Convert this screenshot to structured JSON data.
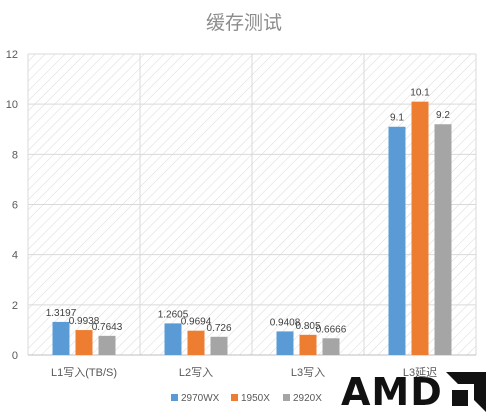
{
  "chart_data": {
    "type": "bar",
    "title": "缓存测试",
    "categories": [
      "L1写入(TB/S)",
      "L2写入",
      "L3写入",
      "L3延迟"
    ],
    "series": [
      {
        "name": "2970WX",
        "color": "#5b9bd5",
        "values": [
          1.3197,
          1.2605,
          0.9408,
          9.1
        ],
        "labels": [
          "1.3197",
          "1.2605",
          "0.9408",
          "9.1"
        ]
      },
      {
        "name": "1950X",
        "color": "#ed7d31",
        "values": [
          0.9938,
          0.9694,
          0.805,
          10.1
        ],
        "labels": [
          "0.9938",
          "0.9694",
          "0.805",
          "10.1"
        ]
      },
      {
        "name": "2920X",
        "color": "#a5a5a5",
        "values": [
          0.7643,
          0.726,
          0.6666,
          9.2
        ],
        "labels": [
          "0.7643",
          "0.726",
          "0.6666",
          "9.2"
        ]
      }
    ],
    "ylim": [
      0,
      12
    ],
    "yticks": [
      0,
      2,
      4,
      6,
      8,
      10,
      12
    ],
    "grid": true,
    "legend_position": "bottom"
  },
  "brand": {
    "text": "AMD"
  }
}
